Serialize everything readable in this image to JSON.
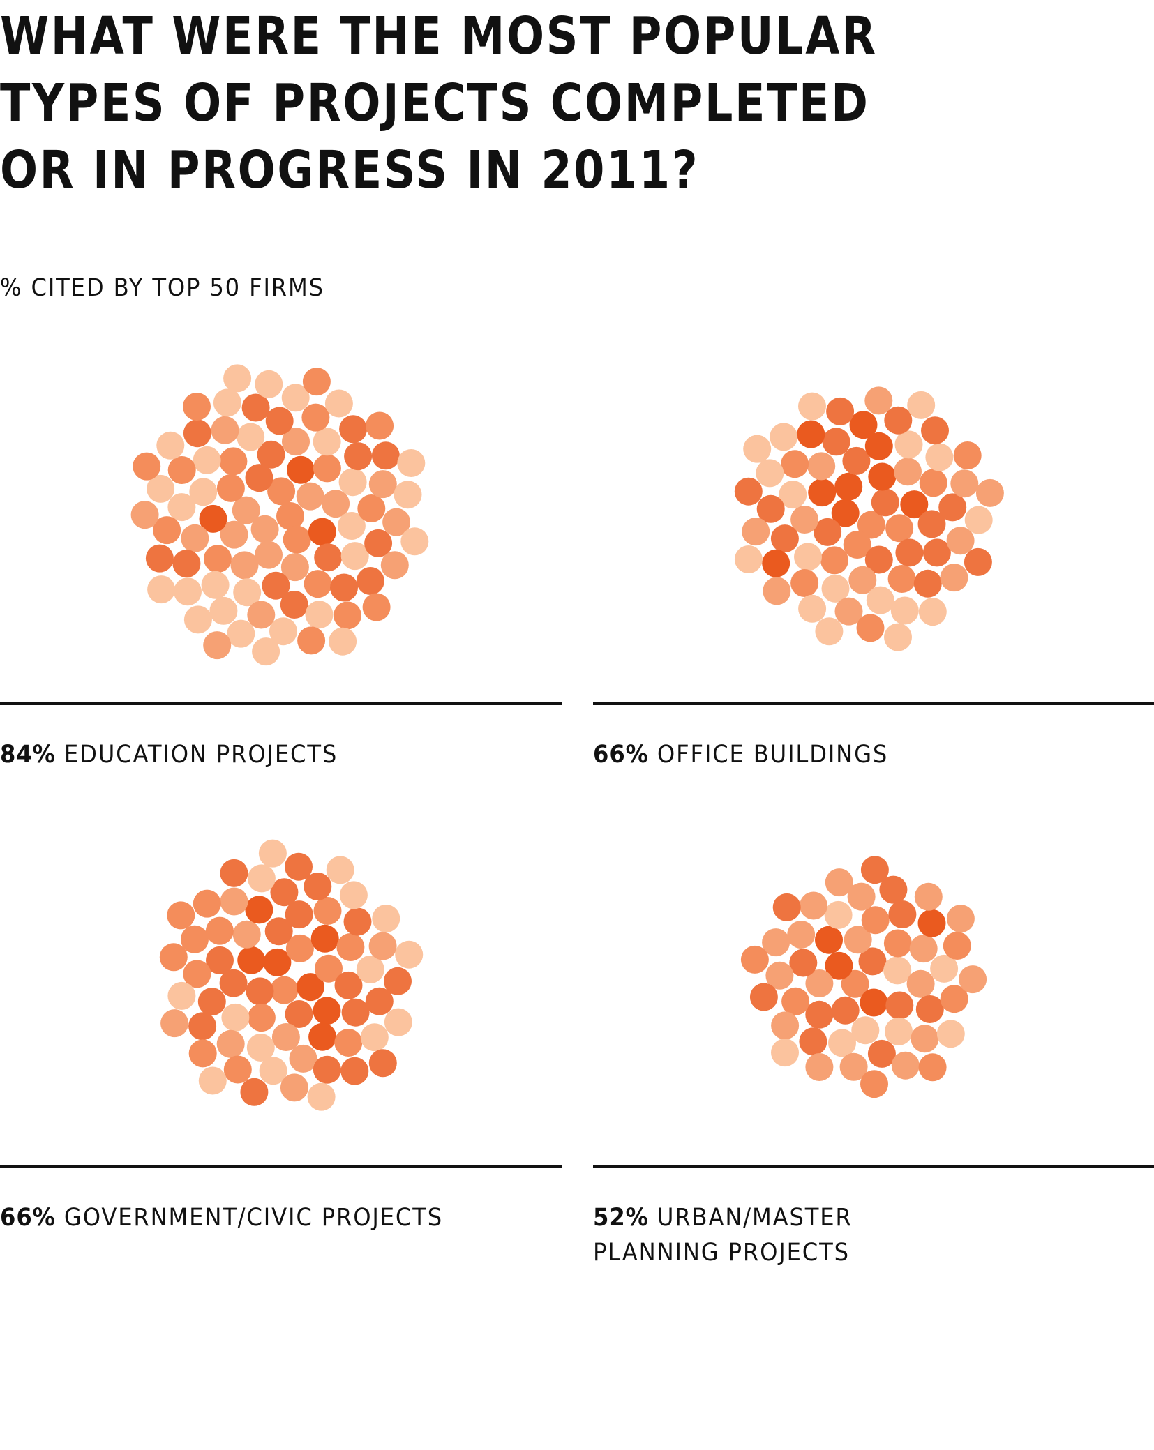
{
  "title": {
    "line1": "WHAT WERE THE MOST POPULAR",
    "line2": "TYPES OF PROJECTS COMPLETED",
    "line3": "OR IN PROGRESS IN 2011?"
  },
  "subtitle": "% CITED BY TOP 50 FIRMS",
  "colors": {
    "palette": [
      "#fbc39e",
      "#f6a174",
      "#f48d5b",
      "#ee7440",
      "#ea5a1f"
    ],
    "rule": "#111111",
    "text": "#111111"
  },
  "chart_data": {
    "type": "other",
    "description_of_marks": "each category shown as a cluster of orange dots, one dot per cited firm",
    "title": "WHAT WERE THE MOST POPULAR TYPES OF PROJECTS COMPLETED OR IN PROGRESS IN 2011?",
    "subtitle": "% CITED BY TOP 50 FIRMS",
    "categories": [
      "EDUCATION PROJECTS",
      "OFFICE BUILDINGS",
      "GOVERNMENT/CIVIC PROJECTS",
      "URBAN/MASTER PLANNING PROJECTS"
    ],
    "values": [
      84,
      66,
      66,
      52
    ],
    "unit": "%",
    "items": [
      {
        "value": 84,
        "value_label": "84%",
        "label_lines": [
          "EDUCATION PROJECTS"
        ]
      },
      {
        "value": 66,
        "value_label": "66%",
        "label_lines": [
          "OFFICE BUILDINGS"
        ]
      },
      {
        "value": 66,
        "value_label": "66%",
        "label_lines": [
          "GOVERNMENT/CIVIC PROJECTS"
        ]
      },
      {
        "value": 52,
        "value_label": "52%",
        "label_lines": [
          "URBAN/MASTER",
          "PLANNING PROJECTS"
        ]
      }
    ]
  }
}
